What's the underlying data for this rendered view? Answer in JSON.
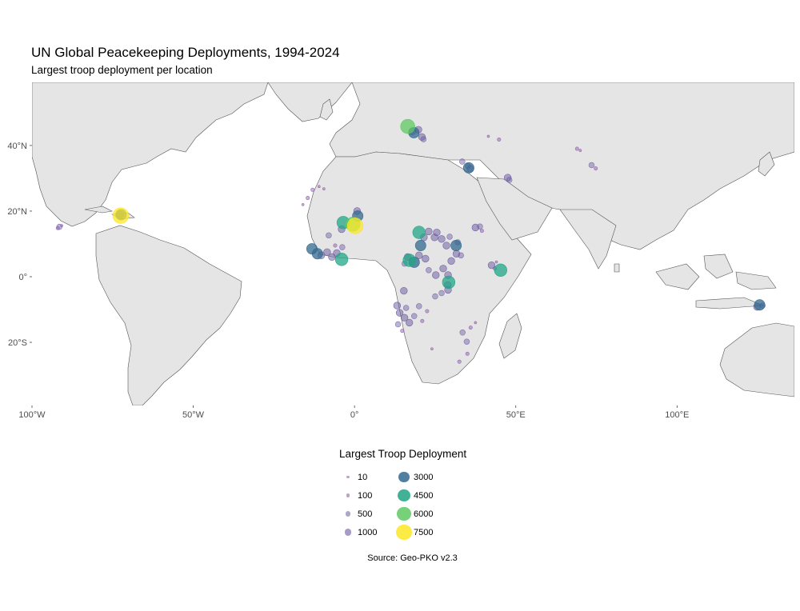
{
  "title": "UN Global Peacekeeping Deployments, 1994-2024",
  "subtitle": "Largest troop deployment per location",
  "source": "Source: Geo-PKO v2.3",
  "map": {
    "background": "#ffffff",
    "land_color": "#e5e5e5",
    "border_color": "#555555",
    "projection": "equirectangular",
    "lon_range": [
      -100,
      136
    ],
    "lat_range": [
      -40,
      60
    ],
    "x_ticks": [
      {
        "value": -100,
        "label": "100°W"
      },
      {
        "value": -50,
        "label": "50°W"
      },
      {
        "value": 0,
        "label": "0°"
      },
      {
        "value": 50,
        "label": "50°E"
      },
      {
        "value": 100,
        "label": "100°E"
      }
    ],
    "y_ticks": [
      {
        "value": 40,
        "label": "40°N"
      },
      {
        "value": 20,
        "label": "20°N"
      },
      {
        "value": 0,
        "label": "0°"
      },
      {
        "value": -20,
        "label": "20°S"
      }
    ]
  },
  "legend": {
    "title": "Largest Troop Deployment",
    "items": [
      {
        "label": "10",
        "value": 10,
        "color": "#9a5fb0"
      },
      {
        "label": "100",
        "value": 100,
        "color": "#8e62ab"
      },
      {
        "label": "500",
        "value": 500,
        "color": "#7a6aa8"
      },
      {
        "label": "1000",
        "value": 1000,
        "color": "#6a5a9e"
      },
      {
        "label": "3000",
        "value": 3000,
        "color": "#31688e"
      },
      {
        "label": "4500",
        "value": 4500,
        "color": "#21a585"
      },
      {
        "label": "6000",
        "value": 6000,
        "color": "#5ec962"
      },
      {
        "label": "7500",
        "value": 7500,
        "color": "#fde725"
      }
    ]
  },
  "chart_data": {
    "type": "scatter",
    "x_field": "longitude",
    "y_field": "latitude",
    "size_field": "troops",
    "color_field": "troops",
    "points": [
      {
        "lon": -72.5,
        "lat": 18.6,
        "troops": 7500
      },
      {
        "lon": -72.4,
        "lat": 18.9,
        "troops": 3000
      },
      {
        "lon": -72.7,
        "lat": 19.0,
        "troops": 1000
      },
      {
        "lon": -91.5,
        "lat": 15.2,
        "troops": 500
      },
      {
        "lon": -92.0,
        "lat": 14.8,
        "troops": 100
      },
      {
        "lon": -90.8,
        "lat": 15.6,
        "troops": 10
      },
      {
        "lon": 16.5,
        "lat": 45.8,
        "troops": 6000
      },
      {
        "lon": 18.4,
        "lat": 43.9,
        "troops": 3000
      },
      {
        "lon": 19.8,
        "lat": 44.8,
        "troops": 1000
      },
      {
        "lon": 20.9,
        "lat": 42.6,
        "troops": 1000
      },
      {
        "lon": 17.9,
        "lat": 44.3,
        "troops": 1000
      },
      {
        "lon": 21.4,
        "lat": 41.9,
        "troops": 500
      },
      {
        "lon": 33.4,
        "lat": 35.1,
        "troops": 500
      },
      {
        "lon": 35.4,
        "lat": 33.2,
        "troops": 3000
      },
      {
        "lon": 35.9,
        "lat": 32.9,
        "troops": 1000
      },
      {
        "lon": 35.2,
        "lat": 33.7,
        "troops": 500
      },
      {
        "lon": 47.5,
        "lat": 30.2,
        "troops": 1000
      },
      {
        "lon": 48.0,
        "lat": 29.5,
        "troops": 500
      },
      {
        "lon": 44.8,
        "lat": 41.8,
        "troops": 100
      },
      {
        "lon": 41.5,
        "lat": 42.8,
        "troops": 10
      },
      {
        "lon": 73.5,
        "lat": 34.0,
        "troops": 500
      },
      {
        "lon": 74.8,
        "lat": 33.0,
        "troops": 100
      },
      {
        "lon": 69.0,
        "lat": 39.0,
        "troops": 100
      },
      {
        "lon": 70.0,
        "lat": 38.5,
        "troops": 10
      },
      {
        "lon": -13.0,
        "lat": 26.5,
        "troops": 100
      },
      {
        "lon": -14.5,
        "lat": 24.0,
        "troops": 100
      },
      {
        "lon": -11.0,
        "lat": 27.5,
        "troops": 10
      },
      {
        "lon": -9.5,
        "lat": 26.8,
        "troops": 10
      },
      {
        "lon": -16.0,
        "lat": 22.0,
        "troops": 10
      },
      {
        "lon": -3.5,
        "lat": 16.5,
        "troops": 4500
      },
      {
        "lon": -0.5,
        "lat": 16.0,
        "troops": 6000
      },
      {
        "lon": 0.2,
        "lat": 15.5,
        "troops": 7500
      },
      {
        "lon": 1.0,
        "lat": 18.5,
        "troops": 3000
      },
      {
        "lon": 0.8,
        "lat": 20.0,
        "troops": 1000
      },
      {
        "lon": -4.0,
        "lat": 14.5,
        "troops": 1000
      },
      {
        "lon": -8.0,
        "lat": 12.6,
        "troops": 500
      },
      {
        "lon": -13.2,
        "lat": 8.5,
        "troops": 3000
      },
      {
        "lon": -11.5,
        "lat": 7.0,
        "troops": 3000
      },
      {
        "lon": -10.3,
        "lat": 6.5,
        "troops": 1000
      },
      {
        "lon": -8.5,
        "lat": 7.5,
        "troops": 1000
      },
      {
        "lon": -7.0,
        "lat": 6.0,
        "troops": 1000
      },
      {
        "lon": -4.0,
        "lat": 5.3,
        "troops": 4500
      },
      {
        "lon": -5.5,
        "lat": 7.2,
        "troops": 1000
      },
      {
        "lon": -3.8,
        "lat": 9.0,
        "troops": 500
      },
      {
        "lon": -6.0,
        "lat": 9.5,
        "troops": 100
      },
      {
        "lon": 20.0,
        "lat": 13.5,
        "troops": 4500
      },
      {
        "lon": 21.5,
        "lat": 12.0,
        "troops": 1000
      },
      {
        "lon": 23.0,
        "lat": 13.8,
        "troops": 1000
      },
      {
        "lon": 24.8,
        "lat": 12.0,
        "troops": 1000
      },
      {
        "lon": 25.5,
        "lat": 13.5,
        "troops": 1000
      },
      {
        "lon": 27.0,
        "lat": 11.5,
        "troops": 1000
      },
      {
        "lon": 28.5,
        "lat": 9.5,
        "troops": 1000
      },
      {
        "lon": 29.5,
        "lat": 12.2,
        "troops": 500
      },
      {
        "lon": 31.5,
        "lat": 9.5,
        "troops": 3000
      },
      {
        "lon": 31.6,
        "lat": 7.0,
        "troops": 1000
      },
      {
        "lon": 30.0,
        "lat": 4.8,
        "troops": 1000
      },
      {
        "lon": 33.0,
        "lat": 6.5,
        "troops": 500
      },
      {
        "lon": 32.0,
        "lat": 10.5,
        "troops": 500
      },
      {
        "lon": 37.5,
        "lat": 15.0,
        "troops": 1000
      },
      {
        "lon": 38.9,
        "lat": 15.3,
        "troops": 500
      },
      {
        "lon": 39.5,
        "lat": 14.0,
        "troops": 100
      },
      {
        "lon": 42.5,
        "lat": 3.5,
        "troops": 1000
      },
      {
        "lon": 45.3,
        "lat": 2.0,
        "troops": 4500
      },
      {
        "lon": 43.5,
        "lat": 2.5,
        "troops": 100
      },
      {
        "lon": 44.0,
        "lat": 4.5,
        "troops": 10
      },
      {
        "lon": 20.0,
        "lat": 6.5,
        "troops": 1000
      },
      {
        "lon": 18.5,
        "lat": 4.4,
        "troops": 3000
      },
      {
        "lon": 16.5,
        "lat": 6.0,
        "troops": 1000
      },
      {
        "lon": 22.0,
        "lat": 5.5,
        "troops": 1000
      },
      {
        "lon": 15.5,
        "lat": 4.0,
        "troops": 500
      },
      {
        "lon": 17.0,
        "lat": 5.0,
        "troops": 4500
      },
      {
        "lon": 20.5,
        "lat": 9.5,
        "troops": 3000
      },
      {
        "lon": 29.2,
        "lat": -1.7,
        "troops": 4500
      },
      {
        "lon": 29.0,
        "lat": 0.5,
        "troops": 1000
      },
      {
        "lon": 27.5,
        "lat": 2.5,
        "troops": 1000
      },
      {
        "lon": 25.2,
        "lat": 0.5,
        "troops": 1000
      },
      {
        "lon": 28.9,
        "lat": -2.5,
        "troops": 1000
      },
      {
        "lon": 29.0,
        "lat": -4.0,
        "troops": 1000
      },
      {
        "lon": 27.0,
        "lat": -5.0,
        "troops": 500
      },
      {
        "lon": 25.0,
        "lat": -6.0,
        "troops": 500
      },
      {
        "lon": 23.0,
        "lat": 2.0,
        "troops": 500
      },
      {
        "lon": 15.3,
        "lat": -4.3,
        "troops": 1000
      },
      {
        "lon": 13.2,
        "lat": -8.8,
        "troops": 1000
      },
      {
        "lon": 14.0,
        "lat": -11.0,
        "troops": 1000
      },
      {
        "lon": 15.5,
        "lat": -12.5,
        "troops": 1000
      },
      {
        "lon": 17.0,
        "lat": -14.0,
        "troops": 1000
      },
      {
        "lon": 18.5,
        "lat": -12.0,
        "troops": 500
      },
      {
        "lon": 20.0,
        "lat": -9.0,
        "troops": 500
      },
      {
        "lon": 13.5,
        "lat": -14.5,
        "troops": 500
      },
      {
        "lon": 16.0,
        "lat": -9.5,
        "troops": 500
      },
      {
        "lon": 22.5,
        "lat": -10.5,
        "troops": 100
      },
      {
        "lon": 21.0,
        "lat": -13.5,
        "troops": 100
      },
      {
        "lon": 14.8,
        "lat": -16.5,
        "troops": 100
      },
      {
        "lon": 34.8,
        "lat": -19.8,
        "troops": 500
      },
      {
        "lon": 33.5,
        "lat": -17.0,
        "troops": 500
      },
      {
        "lon": 32.5,
        "lat": -25.9,
        "troops": 100
      },
      {
        "lon": 35.0,
        "lat": -23.5,
        "troops": 100
      },
      {
        "lon": 36.0,
        "lat": -15.5,
        "troops": 100
      },
      {
        "lon": 37.5,
        "lat": -14.0,
        "troops": 10
      },
      {
        "lon": 24.0,
        "lat": -22.0,
        "troops": 10
      },
      {
        "lon": 125.6,
        "lat": -8.6,
        "troops": 3000
      },
      {
        "lon": 124.8,
        "lat": -9.2,
        "troops": 1000
      },
      {
        "lon": 126.5,
        "lat": -8.8,
        "troops": 500
      }
    ]
  }
}
